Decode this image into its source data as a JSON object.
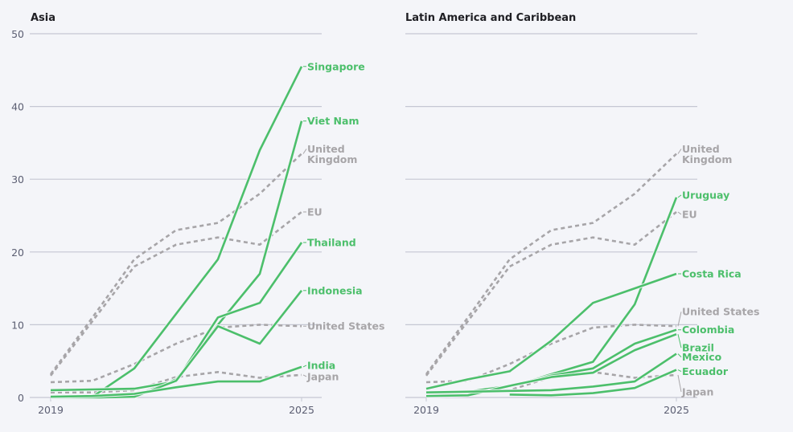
{
  "colors": {
    "highlight": "#4cbf6b",
    "reference": "#a7a5a8",
    "grid": "#c5c7d3",
    "background": "#f4f5f9"
  },
  "chart_data": [
    {
      "type": "line",
      "title": "Asia",
      "x": [
        2019,
        2020,
        2021,
        2022,
        2023,
        2024,
        2025
      ],
      "xticks": [
        "2019",
        "2025"
      ],
      "ylim": [
        0,
        50
      ],
      "yticks": [
        "0",
        "10",
        "20",
        "30",
        "40",
        "50"
      ],
      "grid": true,
      "series": [
        {
          "name": "United Kingdom",
          "label": [
            "United",
            "Kingdom"
          ],
          "style": "reference",
          "values": [
            3.2,
            11,
            19,
            23,
            24,
            28,
            33.5
          ]
        },
        {
          "name": "EU",
          "label": [
            "EU"
          ],
          "style": "reference",
          "values": [
            3.0,
            10.5,
            18,
            21,
            22,
            21,
            25.5
          ]
        },
        {
          "name": "United States",
          "label": [
            "United States"
          ],
          "style": "reference",
          "values": [
            2.1,
            2.3,
            4.6,
            7.4,
            9.6,
            10,
            9.8
          ]
        },
        {
          "name": "Japan",
          "label": [
            "Japan"
          ],
          "style": "reference",
          "values": [
            0.7,
            0.7,
            1.0,
            2.8,
            3.5,
            2.7,
            3.1
          ]
        },
        {
          "name": "Singapore",
          "label": [
            "Singapore"
          ],
          "style": "highlight",
          "values": [
            0,
            0.1,
            4,
            11.5,
            19,
            34,
            45.5
          ]
        },
        {
          "name": "Viet Nam",
          "label": [
            "Viet Nam"
          ],
          "style": "highlight",
          "values": [
            0,
            0,
            0.2,
            2.5,
            10,
            17,
            38
          ]
        },
        {
          "name": "Thailand",
          "label": [
            "Thailand"
          ],
          "style": "highlight",
          "values": [
            1.0,
            1.1,
            1.2,
            2.2,
            11,
            13,
            21.3
          ]
        },
        {
          "name": "Indonesia",
          "label": [
            "Indonesia"
          ],
          "style": "highlight",
          "values": [
            0,
            0,
            0.1,
            2.3,
            9.8,
            7.4,
            14.7
          ]
        },
        {
          "name": "India",
          "label": [
            "India"
          ],
          "style": "highlight",
          "values": [
            0.1,
            0.2,
            0.5,
            1.4,
            2.2,
            2.2,
            4.2
          ]
        }
      ]
    },
    {
      "type": "line",
      "title": "Latin America and Caribbean",
      "x": [
        2019,
        2020,
        2021,
        2022,
        2023,
        2024,
        2025
      ],
      "xticks": [
        "2019",
        "2025"
      ],
      "ylim": [
        0,
        50
      ],
      "grid": true,
      "series": [
        {
          "name": "United Kingdom",
          "label": [
            "United",
            "Kingdom"
          ],
          "style": "reference",
          "values": [
            3.2,
            11,
            19,
            23,
            24,
            28,
            33.5
          ]
        },
        {
          "name": "EU",
          "label": [
            "EU"
          ],
          "style": "reference",
          "values": [
            3.0,
            10.5,
            18,
            21,
            22,
            21,
            25.5
          ]
        },
        {
          "name": "United States",
          "label": [
            "United States"
          ],
          "style": "reference",
          "values": [
            2.1,
            2.3,
            4.6,
            7.4,
            9.6,
            10,
            9.8
          ]
        },
        {
          "name": "Japan",
          "label": [
            "Japan"
          ],
          "style": "reference",
          "values": [
            0.7,
            0.7,
            1.0,
            2.8,
            3.5,
            2.7,
            3.1
          ]
        },
        {
          "name": "Uruguay",
          "label": [
            "Uruguay"
          ],
          "style": "highlight",
          "values": [
            0.2,
            0.3,
            1.5,
            3.2,
            4.9,
            12.8,
            27.5
          ]
        },
        {
          "name": "Costa Rica",
          "label": [
            "Costa Rica"
          ],
          "style": "highlight",
          "values": [
            1.2,
            2.5,
            3.6,
            7.8,
            13,
            15,
            17
          ]
        },
        {
          "name": "Colombia",
          "label": [
            "Colombia"
          ],
          "style": "highlight",
          "values": [
            0.7,
            0.8,
            1.6,
            3.0,
            4.0,
            7.4,
            9.3
          ]
        },
        {
          "name": "Brazil",
          "label": [
            "Brazil"
          ],
          "style": "highlight",
          "values": [
            0.2,
            0.3,
            1.6,
            2.8,
            3.4,
            6.5,
            8.7
          ]
        },
        {
          "name": "Mexico",
          "label": [
            "Mexico"
          ],
          "style": "highlight",
          "values": [
            0.7,
            0.8,
            0.9,
            1.0,
            1.5,
            2.2,
            6.0
          ]
        },
        {
          "name": "Ecuador",
          "label": [
            "Ecuador"
          ],
          "style": "highlight",
          "values": [
            null,
            null,
            0.4,
            0.3,
            0.6,
            1.3,
            3.8
          ]
        }
      ]
    }
  ]
}
